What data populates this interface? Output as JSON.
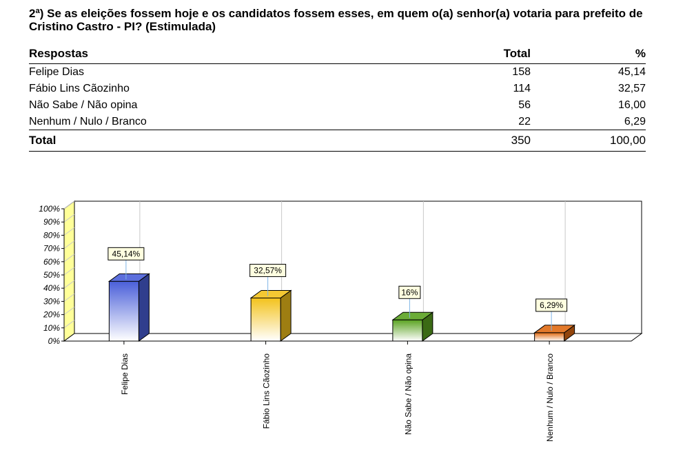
{
  "question": "2ª) Se as eleições fossem hoje e os candidatos fossem esses, em quem o(a) senhor(a) votaria para prefeito de Cristino Castro - PI? (Estimulada)",
  "table": {
    "headers": {
      "respostas": "Respostas",
      "total": "Total",
      "pct": "%"
    },
    "rows": [
      {
        "label": "Felipe Dias",
        "total": "158",
        "pct": "45,14"
      },
      {
        "label": "Fábio Lins Cãozinho",
        "total": "114",
        "pct": "32,57"
      },
      {
        "label": "Não Sabe / Não opina",
        "total": "56",
        "pct": "16,00"
      },
      {
        "label": "Nenhum / Nulo / Branco",
        "total": "22",
        "pct": "6,29"
      }
    ],
    "total_row": {
      "label": "Total",
      "total": "350",
      "pct": "100,00"
    }
  },
  "chart_data": {
    "type": "bar",
    "categories": [
      "Felipe Dias",
      "Fábio Lins Cãozinho",
      "Não Sabe / Não opina",
      "Nenhum / Nulo / Branco"
    ],
    "values": [
      45.14,
      32.57,
      16,
      6.29
    ],
    "data_labels": [
      "45,14%",
      "32,57%",
      "16%",
      "6,29%"
    ],
    "y_ticks": [
      "0%",
      "10%",
      "20%",
      "30%",
      "40%",
      "50%",
      "60%",
      "70%",
      "80%",
      "90%",
      "100%"
    ],
    "ylim": [
      0,
      100
    ],
    "colors": [
      "#4a5fd9",
      "#f3c21c",
      "#5aa321",
      "#e06a12"
    ],
    "grid": true,
    "three_d": true
  }
}
